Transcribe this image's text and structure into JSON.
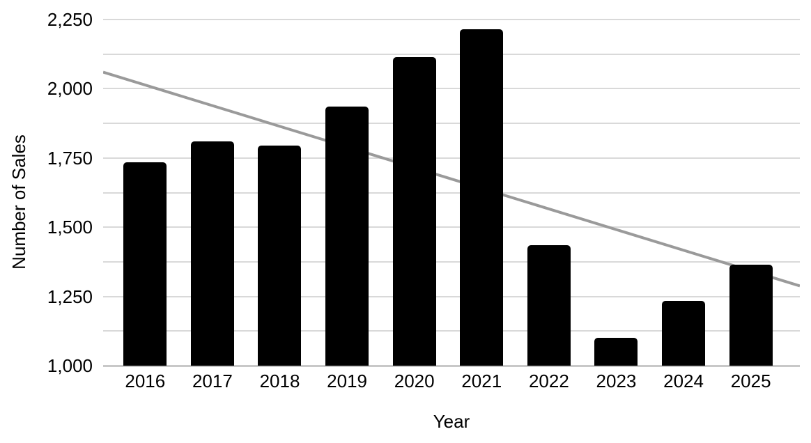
{
  "chart_data": {
    "type": "bar",
    "title": "",
    "xlabel": "Year",
    "ylabel": "Number of Sales",
    "categories": [
      "2016",
      "2017",
      "2018",
      "2019",
      "2020",
      "2021",
      "2022",
      "2023",
      "2024",
      "2025"
    ],
    "values": [
      1735,
      1810,
      1795,
      1935,
      2115,
      2215,
      1435,
      1100,
      1235,
      1365
    ],
    "ylim": [
      1000,
      2250
    ],
    "y_major_ticks": [
      {
        "value": 1000,
        "label": "1,000"
      },
      {
        "value": 1250,
        "label": "1,250"
      },
      {
        "value": 1500,
        "label": "1,500"
      },
      {
        "value": 1750,
        "label": "1,750"
      },
      {
        "value": 2000,
        "label": "2,000"
      },
      {
        "value": 2250,
        "label": "2,250"
      }
    ],
    "y_gridline_step": 125,
    "grid": "on",
    "legend": "none",
    "trendline": {
      "type": "linear",
      "start_value": 2060,
      "end_value": 1288
    },
    "colors": {
      "bar": "#000000",
      "trendline": "#9a9a9a",
      "gridline": "#d9d9d9",
      "baseline": "#c8c8c8",
      "text": "#000000",
      "background": "#ffffff"
    }
  }
}
